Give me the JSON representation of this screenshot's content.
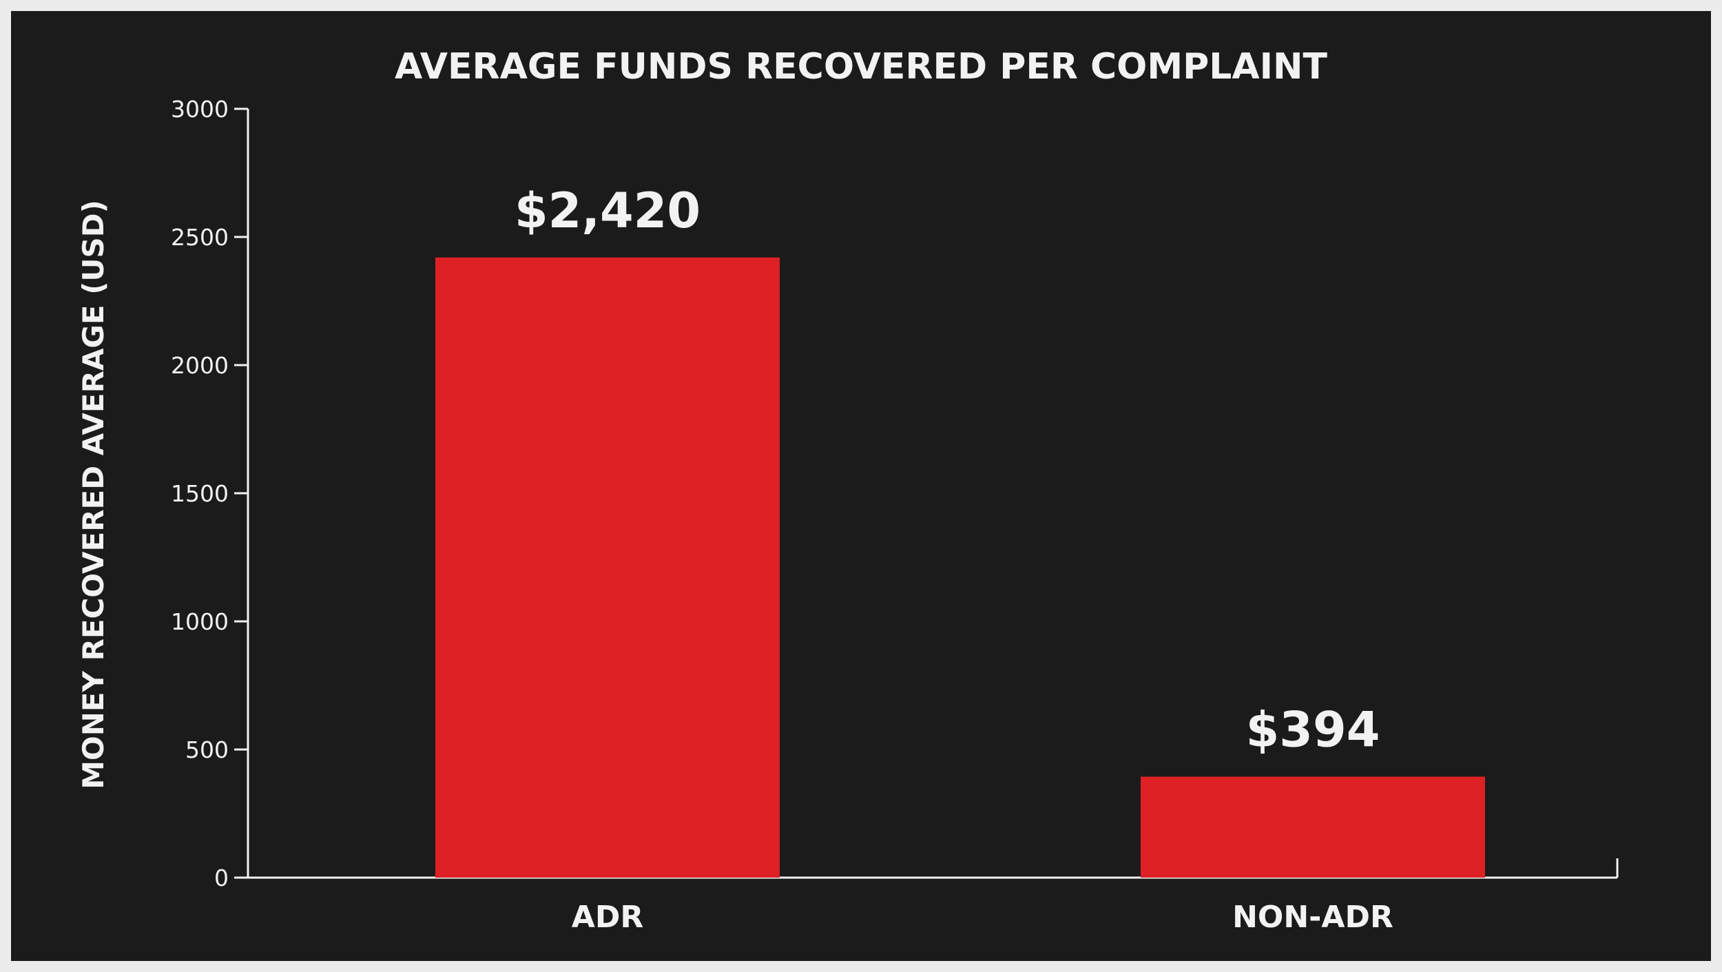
{
  "chart_data": {
    "type": "bar",
    "title": "AVERAGE FUNDS RECOVERED PER COMPLAINT",
    "xlabel": "",
    "ylabel": "MONEY RECOVERED AVERAGE (USD)",
    "categories": [
      "ADR",
      "NON-ADR"
    ],
    "values": [
      2420,
      394
    ],
    "value_labels": [
      "$2,420",
      "$394"
    ],
    "ylim": [
      0,
      3000
    ],
    "yticks": [
      0,
      500,
      1000,
      1500,
      2000,
      2500,
      3000
    ],
    "grid": false,
    "bar_color": "#dd2125",
    "background_color": "#1b1b1b",
    "text_color": "#f2f2f2"
  }
}
